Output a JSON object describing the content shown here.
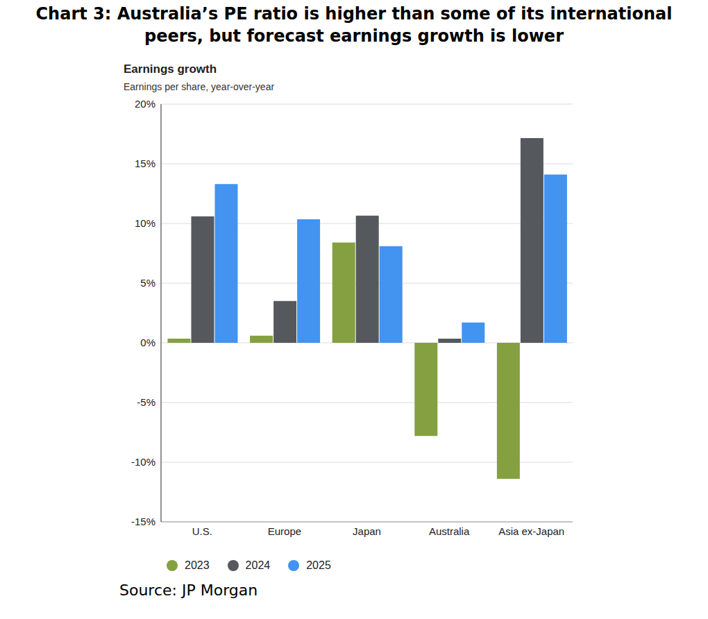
{
  "chart_data": {
    "type": "bar",
    "title": "Chart 3: Australia’s PE ratio is higher than some of its international peers, but forecast earnings growth is lower",
    "subtitle": "Earnings growth",
    "y_label": "Earnings per share, year-over-year",
    "source": "Source: JP Morgan",
    "categories": [
      "U.S.",
      "Europe",
      "Japan",
      "Australia",
      "Asia ex-Japan"
    ],
    "series": [
      {
        "name": "2023",
        "color": "#84a040",
        "values": [
          0.35,
          0.6,
          8.4,
          -7.8,
          -11.4
        ]
      },
      {
        "name": "2024",
        "color": "#55595d",
        "values": [
          10.6,
          3.5,
          10.65,
          0.35,
          17.15
        ]
      },
      {
        "name": "2025",
        "color": "#4393f0",
        "values": [
          13.3,
          10.35,
          8.1,
          1.7,
          14.1
        ]
      }
    ],
    "ylim": [
      -15,
      20
    ],
    "yticks": [
      {
        "value": -15,
        "label": "-15%"
      },
      {
        "value": -10,
        "label": "-10%"
      },
      {
        "value": -5,
        "label": "-5%"
      },
      {
        "value": 0,
        "label": "0%"
      },
      {
        "value": 5,
        "label": "5%"
      },
      {
        "value": 10,
        "label": "10%"
      },
      {
        "value": 15,
        "label": "15%"
      },
      {
        "value": 20,
        "label": "20%"
      }
    ],
    "grid": true,
    "legend": "bottom"
  }
}
